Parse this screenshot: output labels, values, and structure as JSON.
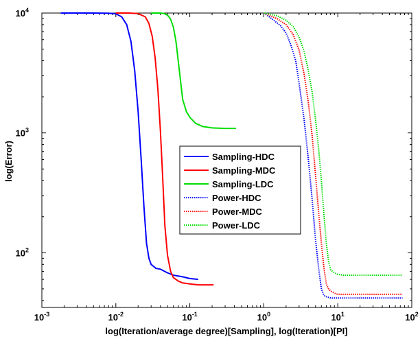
{
  "chart_data": {
    "type": "line",
    "xlabel": "log(Iteration/average degree)[Sampling], log(Iteration)[PI]",
    "ylabel": "log(Error)",
    "xscale": "log",
    "yscale": "log",
    "xlim": [
      0.001,
      100
    ],
    "ylim": [
      35,
      10000
    ],
    "x_ticks": [
      {
        "value": 0.001,
        "base": "10",
        "exp": "-3"
      },
      {
        "value": 0.01,
        "base": "10",
        "exp": "-2"
      },
      {
        "value": 0.1,
        "base": "10",
        "exp": "-1"
      },
      {
        "value": 1,
        "base": "10",
        "exp": "0"
      },
      {
        "value": 10,
        "base": "10",
        "exp": "1"
      },
      {
        "value": 100,
        "base": "10",
        "exp": "2"
      }
    ],
    "y_ticks": [
      {
        "value": 100,
        "base": "10",
        "exp": "2"
      },
      {
        "value": 1000,
        "base": "10",
        "exp": "3"
      },
      {
        "value": 10000,
        "base": "10",
        "exp": "4"
      }
    ],
    "grid": false,
    "legend_position": "center",
    "series": [
      {
        "name": "Sampling-HDC",
        "color": "#0000ff",
        "style": "solid",
        "x": [
          0.0018,
          0.005,
          0.008,
          0.01,
          0.012,
          0.014,
          0.016,
          0.018,
          0.02,
          0.022,
          0.024,
          0.026,
          0.028,
          0.03,
          0.035,
          0.04,
          0.05,
          0.06,
          0.08,
          0.1,
          0.13
        ],
        "y": [
          10000,
          10000,
          9980,
          9850,
          9300,
          8000,
          5800,
          3300,
          1500,
          600,
          240,
          120,
          90,
          80,
          74,
          73,
          68,
          65,
          63,
          61,
          60
        ]
      },
      {
        "name": "Sampling-MDC",
        "color": "#ff0000",
        "style": "solid",
        "x": [
          0.01,
          0.015,
          0.02,
          0.025,
          0.028,
          0.031,
          0.034,
          0.037,
          0.04,
          0.043,
          0.046,
          0.05,
          0.055,
          0.06,
          0.07,
          0.08,
          0.1,
          0.13,
          0.16,
          0.21
        ],
        "y": [
          10000,
          10000,
          9900,
          9300,
          8200,
          6400,
          4200,
          2300,
          1050,
          420,
          170,
          95,
          70,
          62,
          58,
          56,
          55,
          54,
          54,
          54
        ]
      },
      {
        "name": "Sampling-LDC",
        "color": "#00dd00",
        "style": "solid",
        "x": [
          0.03,
          0.04,
          0.045,
          0.05,
          0.055,
          0.06,
          0.065,
          0.07,
          0.075,
          0.08,
          0.09,
          0.1,
          0.12,
          0.15,
          0.2,
          0.3,
          0.42
        ],
        "y": [
          10000,
          10000,
          9900,
          9600,
          8900,
          7600,
          5800,
          3900,
          2700,
          1900,
          1500,
          1350,
          1200,
          1130,
          1100,
          1090,
          1090
        ]
      },
      {
        "name": "Power-HDC",
        "color": "#0000ff",
        "style": "dotted",
        "x": [
          1.0,
          1.3,
          1.7,
          2.0,
          2.3,
          2.7,
          3.0,
          3.5,
          4.0,
          4.5,
          5.0,
          5.5,
          6.0,
          6.5,
          7.0,
          8.0,
          9.0,
          10.0,
          12.0,
          15.0,
          20.0,
          30.0,
          50.0,
          75.0
        ],
        "y": [
          10000,
          8900,
          7800,
          6800,
          5500,
          4000,
          2600,
          1300,
          600,
          280,
          130,
          75,
          50,
          44,
          43,
          42,
          42,
          42,
          42,
          42,
          42,
          42,
          42,
          42
        ]
      },
      {
        "name": "Power-MDC",
        "color": "#ff0000",
        "style": "dotted",
        "x": [
          1.0,
          1.5,
          2.0,
          2.5,
          3.0,
          3.5,
          4.0,
          4.5,
          5.0,
          5.5,
          6.0,
          6.5,
          7.0,
          7.5,
          8.0,
          9.0,
          10.0,
          12.0,
          15.0,
          20.0,
          30.0,
          50.0,
          75.0
        ],
        "y": [
          10000,
          9000,
          8000,
          6600,
          4900,
          3100,
          1800,
          950,
          450,
          220,
          120,
          75,
          55,
          50,
          48,
          46,
          45,
          45,
          45,
          45,
          45,
          45,
          45
        ]
      },
      {
        "name": "Power-LDC",
        "color": "#00dd00",
        "style": "dotted",
        "x": [
          1.0,
          1.5,
          2.0,
          2.5,
          3.0,
          3.5,
          4.0,
          4.5,
          5.0,
          5.5,
          6.0,
          6.5,
          7.0,
          7.5,
          8.0,
          9.0,
          10.0,
          12.0,
          15.0,
          20.0,
          30.0,
          50.0,
          75.0
        ],
        "y": [
          10000,
          9500,
          8700,
          7700,
          6300,
          4800,
          3300,
          2200,
          1300,
          750,
          400,
          210,
          120,
          85,
          72,
          68,
          66,
          65,
          65,
          65,
          65,
          65,
          65
        ]
      }
    ]
  }
}
